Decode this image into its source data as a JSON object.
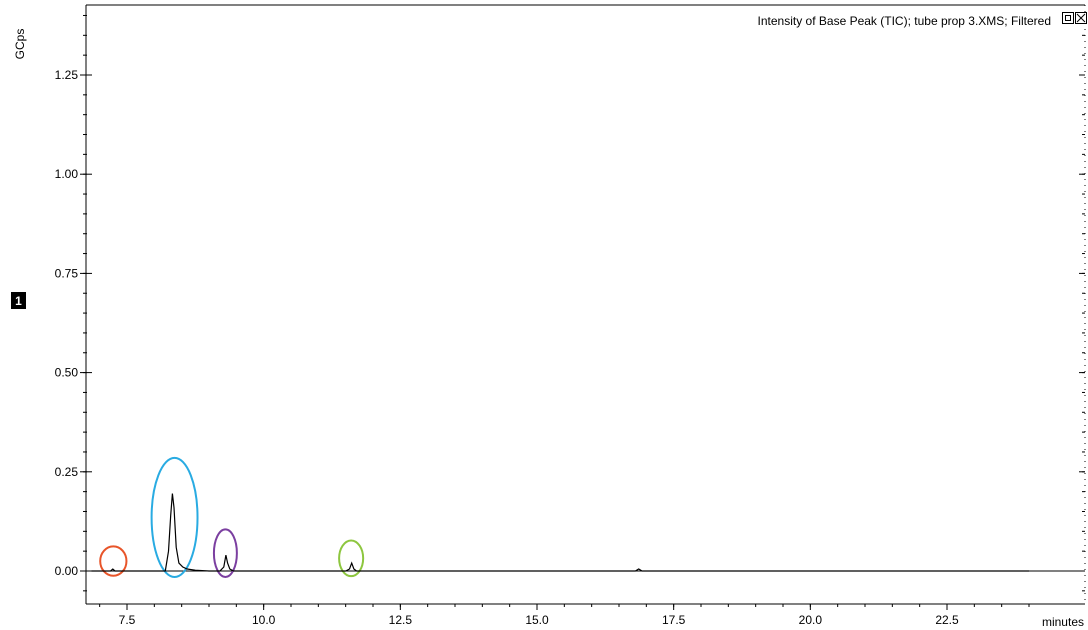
{
  "header": {
    "title": "Intensity of Base Peak (TIC);  tube prop 3.XMS;  Filtered"
  },
  "trace_badge": "1",
  "window_controls": [
    "restore-icon",
    "close-icon"
  ],
  "chart_data": {
    "type": "line",
    "title": "Intensity of Base Peak (TIC);  tube prop 3.XMS;  Filtered",
    "xlabel": "minutes",
    "ylabel": "GCps",
    "xlim": [
      6.75,
      24.0
    ],
    "ylim": [
      -0.05,
      1.45
    ],
    "x_ticks": [
      {
        "value": 7.5,
        "label": "7.5"
      },
      {
        "value": 10.0,
        "label": "10.0"
      },
      {
        "value": 12.5,
        "label": "12.5"
      },
      {
        "value": 15.0,
        "label": "15.0"
      },
      {
        "value": 17.5,
        "label": "17.5"
      },
      {
        "value": 20.0,
        "label": "20.0"
      },
      {
        "value": 22.5,
        "label": "22.5"
      }
    ],
    "y_ticks": [
      {
        "value": 0.0,
        "label": "0.00"
      },
      {
        "value": 0.25,
        "label": "0.25"
      },
      {
        "value": 0.5,
        "label": "0.50"
      },
      {
        "value": 0.75,
        "label": "0.75"
      },
      {
        "value": 1.0,
        "label": "1.00"
      },
      {
        "value": 1.25,
        "label": "1.25"
      }
    ],
    "grid": false,
    "series": [
      {
        "color": "#000000",
        "x": [
          6.85,
          7.1,
          7.2,
          7.24,
          7.28,
          7.35,
          8.0,
          8.2,
          8.26,
          8.3,
          8.33,
          8.36,
          8.4,
          8.45,
          8.52,
          8.6,
          8.75,
          9.0,
          9.2,
          9.27,
          9.31,
          9.34,
          9.38,
          9.45,
          9.6,
          11.0,
          11.5,
          11.57,
          11.61,
          11.65,
          11.7,
          11.85,
          16.8,
          16.86,
          16.92,
          24.0
        ],
        "y": [
          0.0,
          0.0,
          0.0,
          0.005,
          0.0,
          0.0,
          0.0,
          0.0,
          0.05,
          0.14,
          0.195,
          0.16,
          0.06,
          0.02,
          0.01,
          0.005,
          0.002,
          0.0,
          0.0,
          0.01,
          0.04,
          0.02,
          0.005,
          0.0,
          0.0,
          0.0,
          0.0,
          0.005,
          0.02,
          0.005,
          0.0,
          0.0,
          0.0,
          0.005,
          0.0,
          0.0
        ]
      }
    ],
    "annotations": [
      {
        "shape": "ellipse",
        "color": "#e8552a",
        "cx": 7.25,
        "cy": 0.025,
        "rx": 0.24,
        "ry": 0.037
      },
      {
        "shape": "ellipse",
        "color": "#29abe2",
        "cx": 8.37,
        "cy": 0.135,
        "rx": 0.42,
        "ry": 0.15
      },
      {
        "shape": "ellipse",
        "color": "#7b3fa0",
        "cx": 9.3,
        "cy": 0.045,
        "rx": 0.21,
        "ry": 0.06
      },
      {
        "shape": "ellipse",
        "color": "#8dc63f",
        "cx": 11.6,
        "cy": 0.032,
        "rx": 0.22,
        "ry": 0.045
      }
    ]
  }
}
